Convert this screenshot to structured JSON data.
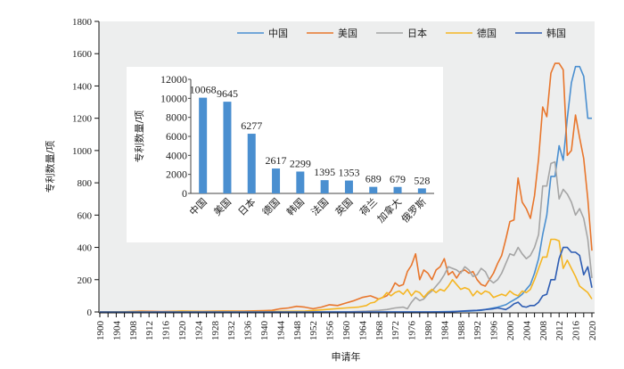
{
  "chart_data": [
    {
      "type": "line",
      "title": "",
      "xlabel": "申请年",
      "ylabel": "专利数量/项",
      "xlim": [
        1900,
        2020
      ],
      "ylim": [
        0,
        1800
      ],
      "yticks": [
        0,
        200,
        400,
        600,
        800,
        1000,
        1200,
        1400,
        1600,
        1800
      ],
      "xticks": [
        1900,
        1904,
        1908,
        1912,
        1916,
        1920,
        1924,
        1928,
        1932,
        1936,
        1940,
        1944,
        1948,
        1952,
        1956,
        1960,
        1964,
        1968,
        1972,
        1976,
        1980,
        1984,
        1988,
        1992,
        1996,
        2000,
        2004,
        2008,
        2012,
        2016,
        2020
      ],
      "grid": false,
      "legend_position": "top-right",
      "series": [
        {
          "name": "中国",
          "color": "#4a8fd0",
          "points": [
            [
              1900,
              0
            ],
            [
              1980,
              0
            ],
            [
              1985,
              2
            ],
            [
              1990,
              5
            ],
            [
              1993,
              10
            ],
            [
              1995,
              20
            ],
            [
              1997,
              30
            ],
            [
              1999,
              45
            ],
            [
              2000,
              60
            ],
            [
              2001,
              75
            ],
            [
              2002,
              90
            ],
            [
              2003,
              110
            ],
            [
              2004,
              140
            ],
            [
              2005,
              170
            ],
            [
              2006,
              240
            ],
            [
              2007,
              330
            ],
            [
              2008,
              480
            ],
            [
              2009,
              600
            ],
            [
              2010,
              840
            ],
            [
              2011,
              840
            ],
            [
              2012,
              1030
            ],
            [
              2013,
              940
            ],
            [
              2014,
              1200
            ],
            [
              2015,
              1420
            ],
            [
              2016,
              1520
            ],
            [
              2017,
              1520
            ],
            [
              2018,
              1460
            ],
            [
              2019,
              1200
            ],
            [
              2020,
              1200
            ]
          ]
        },
        {
          "name": "美国",
          "color": "#e8762c",
          "points": [
            [
              1900,
              0
            ],
            [
              1905,
              0
            ],
            [
              1910,
              5
            ],
            [
              1915,
              3
            ],
            [
              1920,
              5
            ],
            [
              1925,
              4
            ],
            [
              1930,
              6
            ],
            [
              1935,
              5
            ],
            [
              1940,
              8
            ],
            [
              1942,
              10
            ],
            [
              1944,
              20
            ],
            [
              1946,
              25
            ],
            [
              1948,
              35
            ],
            [
              1950,
              30
            ],
            [
              1952,
              20
            ],
            [
              1954,
              30
            ],
            [
              1956,
              45
            ],
            [
              1958,
              40
            ],
            [
              1960,
              55
            ],
            [
              1962,
              70
            ],
            [
              1964,
              90
            ],
            [
              1966,
              100
            ],
            [
              1968,
              80
            ],
            [
              1970,
              100
            ],
            [
              1971,
              130
            ],
            [
              1972,
              180
            ],
            [
              1973,
              160
            ],
            [
              1974,
              170
            ],
            [
              1975,
              250
            ],
            [
              1976,
              290
            ],
            [
              1977,
              360
            ],
            [
              1978,
              200
            ],
            [
              1979,
              260
            ],
            [
              1980,
              240
            ],
            [
              1981,
              200
            ],
            [
              1982,
              260
            ],
            [
              1983,
              280
            ],
            [
              1984,
              330
            ],
            [
              1985,
              230
            ],
            [
              1986,
              250
            ],
            [
              1987,
              210
            ],
            [
              1988,
              250
            ],
            [
              1989,
              260
            ],
            [
              1990,
              240
            ],
            [
              1991,
              250
            ],
            [
              1992,
              200
            ],
            [
              1993,
              170
            ],
            [
              1994,
              160
            ],
            [
              1995,
              200
            ],
            [
              1996,
              240
            ],
            [
              1997,
              300
            ],
            [
              1998,
              350
            ],
            [
              1999,
              450
            ],
            [
              2000,
              560
            ],
            [
              2001,
              570
            ],
            [
              2002,
              830
            ],
            [
              2003,
              680
            ],
            [
              2004,
              640
            ],
            [
              2005,
              580
            ],
            [
              2006,
              720
            ],
            [
              2007,
              950
            ],
            [
              2008,
              1270
            ],
            [
              2009,
              1210
            ],
            [
              2010,
              1480
            ],
            [
              2011,
              1540
            ],
            [
              2012,
              1540
            ],
            [
              2013,
              1500
            ],
            [
              2014,
              970
            ],
            [
              2015,
              1000
            ],
            [
              2016,
              1220
            ],
            [
              2017,
              1080
            ],
            [
              2018,
              950
            ],
            [
              2019,
              700
            ],
            [
              2020,
              380
            ]
          ]
        },
        {
          "name": "日本",
          "color": "#a5a5a5",
          "points": [
            [
              1900,
              0
            ],
            [
              1960,
              0
            ],
            [
              1965,
              5
            ],
            [
              1968,
              10
            ],
            [
              1970,
              15
            ],
            [
              1972,
              25
            ],
            [
              1974,
              30
            ],
            [
              1975,
              20
            ],
            [
              1976,
              60
            ],
            [
              1977,
              90
            ],
            [
              1978,
              70
            ],
            [
              1979,
              80
            ],
            [
              1980,
              110
            ],
            [
              1981,
              130
            ],
            [
              1982,
              160
            ],
            [
              1983,
              190
            ],
            [
              1984,
              230
            ],
            [
              1985,
              280
            ],
            [
              1986,
              270
            ],
            [
              1987,
              260
            ],
            [
              1988,
              240
            ],
            [
              1989,
              280
            ],
            [
              1990,
              260
            ],
            [
              1991,
              220
            ],
            [
              1992,
              230
            ],
            [
              1993,
              270
            ],
            [
              1994,
              250
            ],
            [
              1995,
              200
            ],
            [
              1996,
              180
            ],
            [
              1997,
              200
            ],
            [
              1998,
              240
            ],
            [
              1999,
              300
            ],
            [
              2000,
              360
            ],
            [
              2001,
              350
            ],
            [
              2002,
              400
            ],
            [
              2003,
              360
            ],
            [
              2004,
              330
            ],
            [
              2005,
              350
            ],
            [
              2006,
              400
            ],
            [
              2007,
              480
            ],
            [
              2008,
              780
            ],
            [
              2009,
              780
            ],
            [
              2010,
              920
            ],
            [
              2011,
              930
            ],
            [
              2012,
              700
            ],
            [
              2013,
              760
            ],
            [
              2014,
              730
            ],
            [
              2015,
              680
            ],
            [
              2016,
              600
            ],
            [
              2017,
              640
            ],
            [
              2018,
              580
            ],
            [
              2019,
              450
            ],
            [
              2020,
              210
            ]
          ]
        },
        {
          "name": "德国",
          "color": "#f5b623",
          "points": [
            [
              1900,
              0
            ],
            [
              1910,
              3
            ],
            [
              1915,
              0
            ],
            [
              1920,
              5
            ],
            [
              1925,
              3
            ],
            [
              1930,
              4
            ],
            [
              1935,
              3
            ],
            [
              1940,
              2
            ],
            [
              1950,
              5
            ],
            [
              1955,
              15
            ],
            [
              1960,
              25
            ],
            [
              1963,
              30
            ],
            [
              1965,
              40
            ],
            [
              1966,
              55
            ],
            [
              1967,
              60
            ],
            [
              1968,
              80
            ],
            [
              1969,
              90
            ],
            [
              1970,
              120
            ],
            [
              1971,
              100
            ],
            [
              1972,
              120
            ],
            [
              1973,
              130
            ],
            [
              1974,
              110
            ],
            [
              1975,
              140
            ],
            [
              1976,
              100
            ],
            [
              1977,
              130
            ],
            [
              1978,
              120
            ],
            [
              1979,
              90
            ],
            [
              1980,
              120
            ],
            [
              1981,
              140
            ],
            [
              1982,
              120
            ],
            [
              1983,
              140
            ],
            [
              1984,
              130
            ],
            [
              1985,
              160
            ],
            [
              1986,
              200
            ],
            [
              1987,
              170
            ],
            [
              1988,
              140
            ],
            [
              1989,
              150
            ],
            [
              1990,
              140
            ],
            [
              1991,
              100
            ],
            [
              1992,
              130
            ],
            [
              1993,
              110
            ],
            [
              1994,
              130
            ],
            [
              1995,
              120
            ],
            [
              1996,
              90
            ],
            [
              1997,
              100
            ],
            [
              1998,
              110
            ],
            [
              1999,
              100
            ],
            [
              2000,
              130
            ],
            [
              2001,
              110
            ],
            [
              2002,
              100
            ],
            [
              2003,
              130
            ],
            [
              2004,
              120
            ],
            [
              2005,
              140
            ],
            [
              2006,
              200
            ],
            [
              2007,
              270
            ],
            [
              2008,
              340
            ],
            [
              2009,
              340
            ],
            [
              2010,
              450
            ],
            [
              2011,
              450
            ],
            [
              2012,
              440
            ],
            [
              2013,
              270
            ],
            [
              2014,
              320
            ],
            [
              2015,
              270
            ],
            [
              2016,
              220
            ],
            [
              2017,
              160
            ],
            [
              2018,
              140
            ],
            [
              2019,
              120
            ],
            [
              2020,
              80
            ]
          ]
        },
        {
          "name": "韩国",
          "color": "#2e5db3",
          "points": [
            [
              1900,
              0
            ],
            [
              1985,
              0
            ],
            [
              1988,
              5
            ],
            [
              1990,
              8
            ],
            [
              1992,
              10
            ],
            [
              1994,
              15
            ],
            [
              1996,
              20
            ],
            [
              1997,
              25
            ],
            [
              1998,
              20
            ],
            [
              1999,
              15
            ],
            [
              2000,
              30
            ],
            [
              2001,
              50
            ],
            [
              2002,
              60
            ],
            [
              2003,
              35
            ],
            [
              2004,
              30
            ],
            [
              2005,
              40
            ],
            [
              2006,
              40
            ],
            [
              2007,
              60
            ],
            [
              2008,
              100
            ],
            [
              2009,
              110
            ],
            [
              2010,
              200
            ],
            [
              2011,
              200
            ],
            [
              2012,
              330
            ],
            [
              2013,
              400
            ],
            [
              2014,
              400
            ],
            [
              2015,
              370
            ],
            [
              2016,
              370
            ],
            [
              2017,
              350
            ],
            [
              2018,
              230
            ],
            [
              2019,
              280
            ],
            [
              2020,
              150
            ]
          ]
        }
      ]
    },
    {
      "type": "bar",
      "title": "",
      "xlabel": "",
      "ylabel": "专利数量/项",
      "ylim": [
        0,
        12000
      ],
      "yticks": [
        0,
        2000,
        4000,
        6000,
        8000,
        10000,
        12000
      ],
      "categories": [
        "中国",
        "美国",
        "日本",
        "德国",
        "韩国",
        "法国",
        "英国",
        "荷兰",
        "加拿大",
        "俄罗斯"
      ],
      "values": [
        10068,
        9645,
        6277,
        2617,
        2299,
        1395,
        1353,
        689,
        679,
        528
      ],
      "color": "#4a8fd0",
      "grid": false,
      "placement": "inset top-left"
    }
  ]
}
